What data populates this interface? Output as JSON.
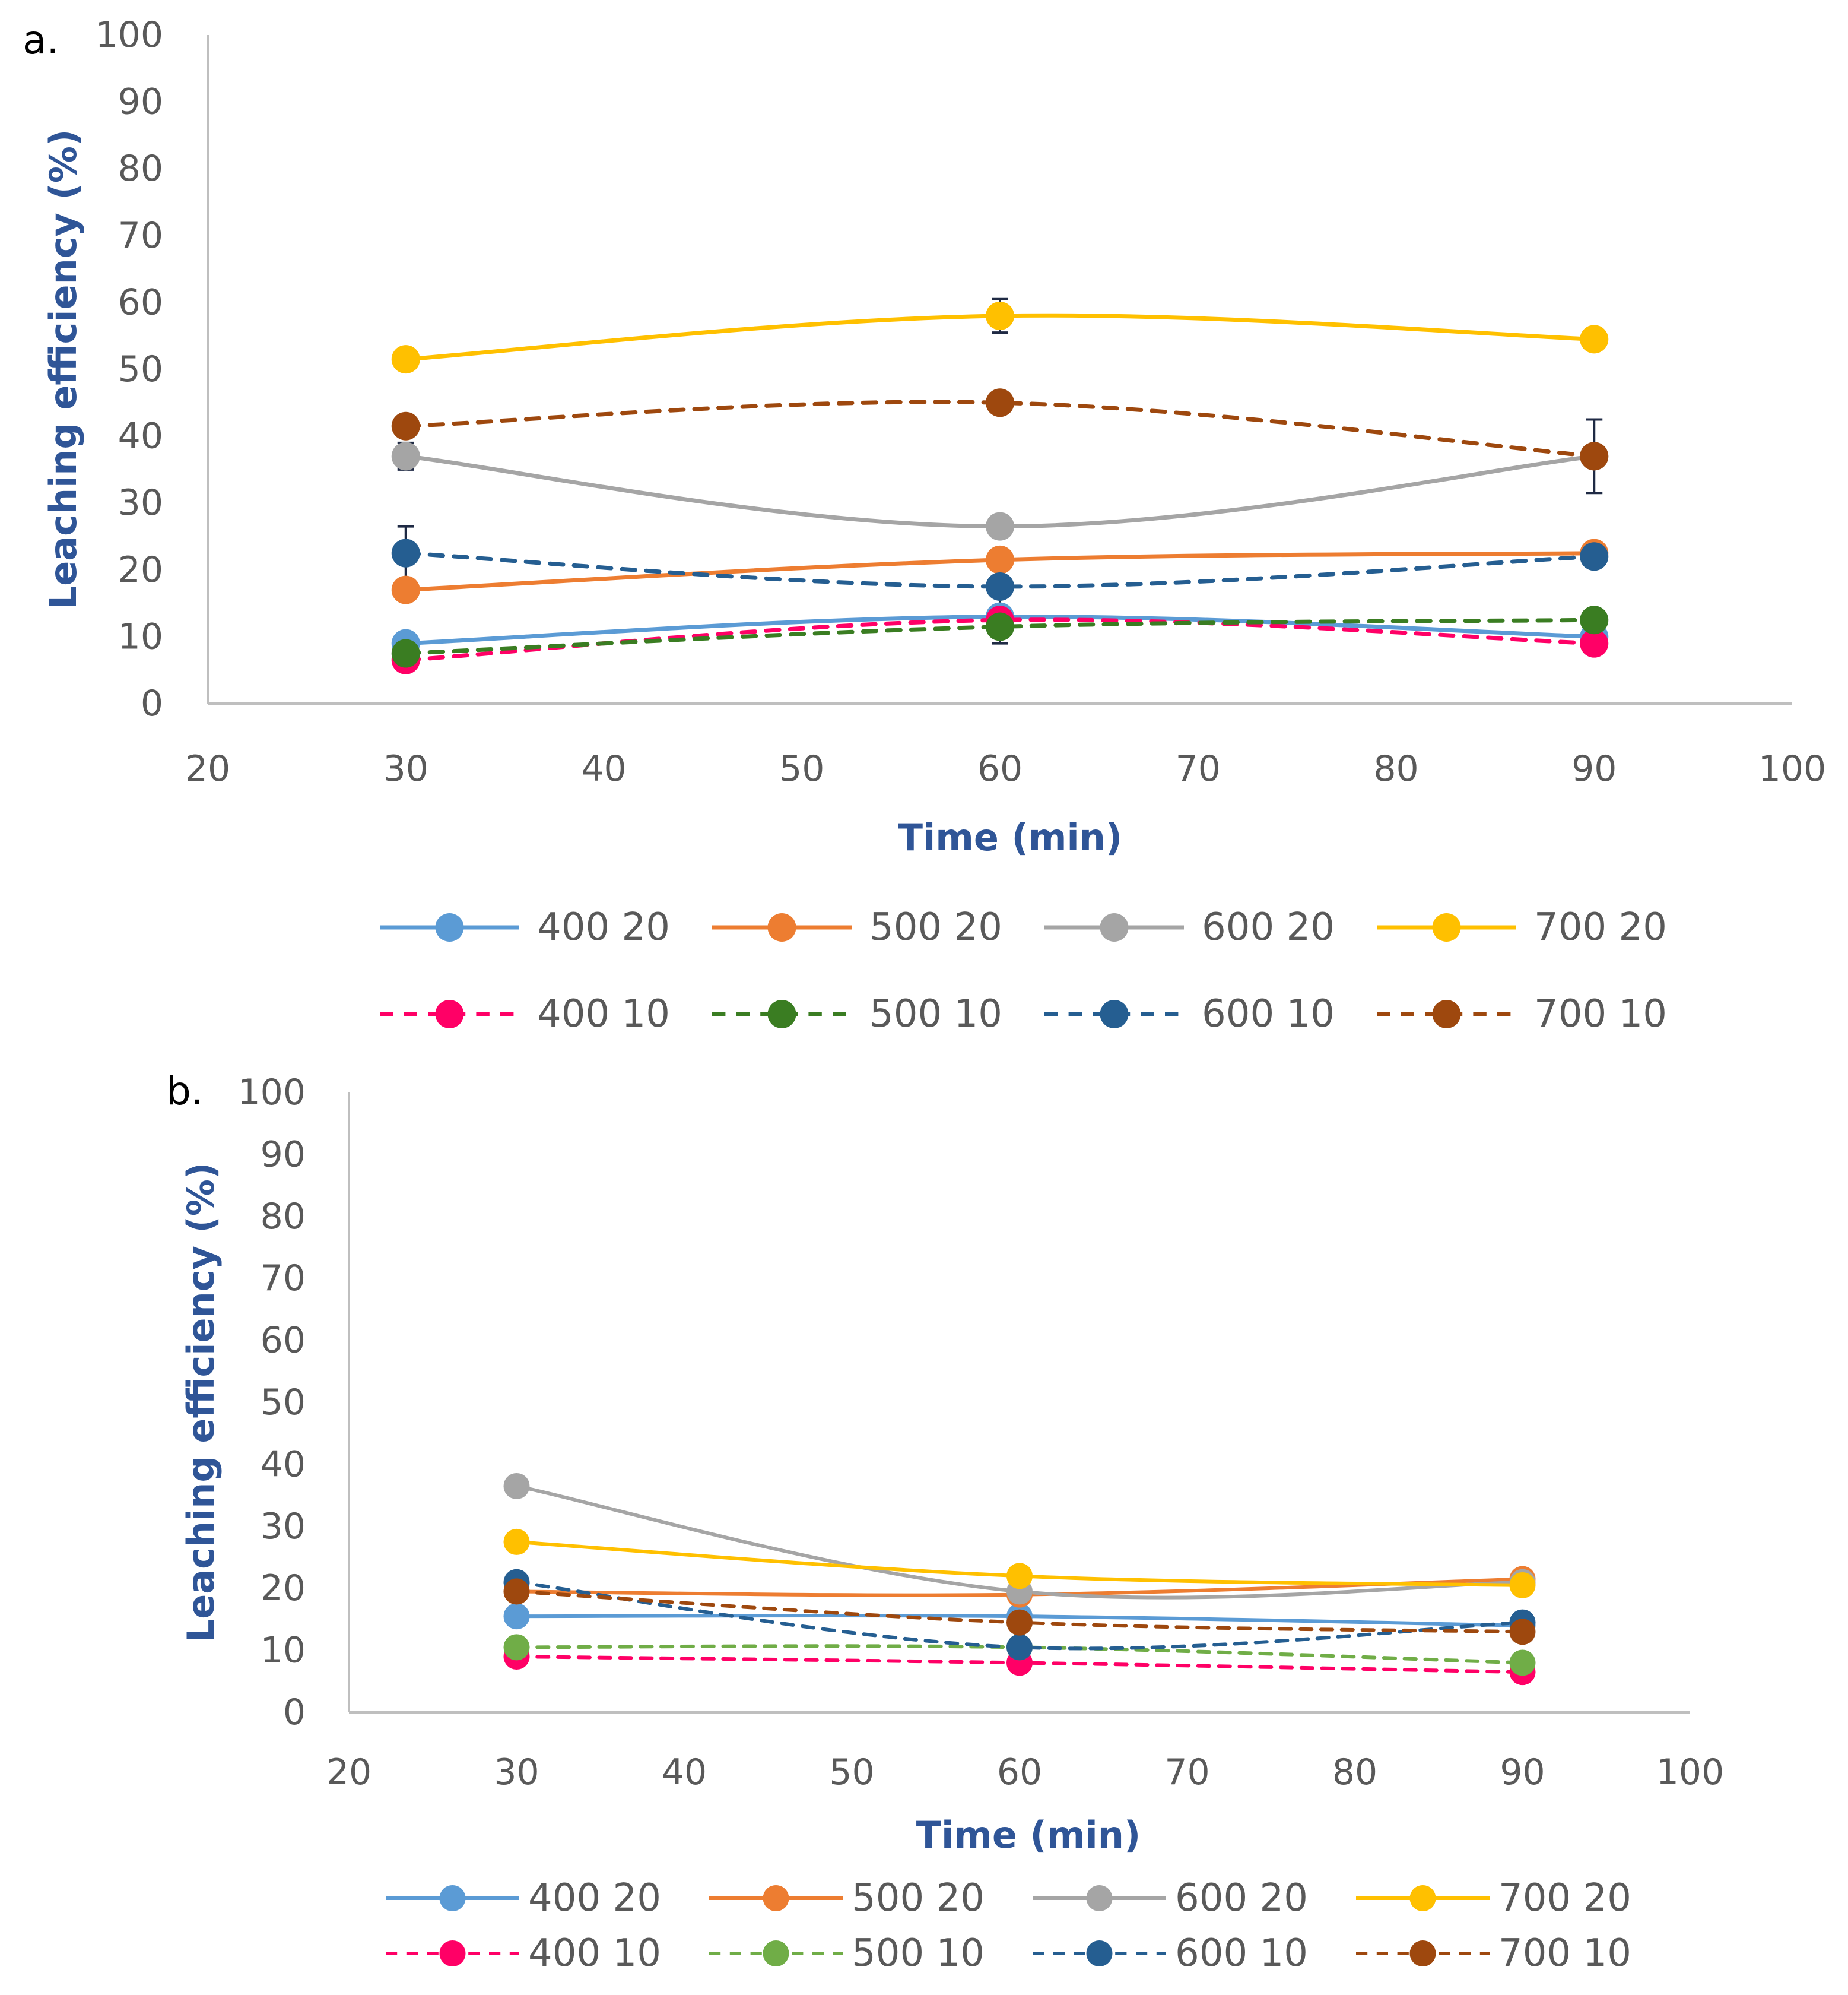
{
  "chart_data": [
    {
      "type": "line",
      "panel_label": "a.",
      "xlabel": "Time (min)",
      "ylabel": "Leaching efficiency (%)",
      "xlim": [
        20,
        100
      ],
      "ylim": [
        0,
        100
      ],
      "xticks": [
        "20",
        "30",
        "40",
        "50",
        "60",
        "70",
        "80",
        "90",
        "100"
      ],
      "yticks": [
        "0",
        "10",
        "20",
        "30",
        "40",
        "50",
        "60",
        "70",
        "80",
        "90",
        "100"
      ],
      "x": [
        30,
        60,
        90
      ],
      "legend_position": "bottom",
      "series": [
        {
          "name": "400 20",
          "values": [
            9,
            13,
            10
          ],
          "color": "#5B9BD5",
          "style": "solid"
        },
        {
          "name": "500 20",
          "values": [
            17,
            21.5,
            22.5
          ],
          "color": "#ED7D31",
          "style": "solid"
        },
        {
          "name": "600 20",
          "values": [
            37,
            26.5,
            37
          ],
          "color": "#A5A5A5",
          "style": "solid",
          "errors": [
            2,
            0,
            0
          ]
        },
        {
          "name": "700 20",
          "values": [
            51.5,
            58,
            54.5
          ],
          "color": "#FFC000",
          "style": "solid",
          "errors": [
            0,
            2.5,
            1.5
          ]
        },
        {
          "name": "400 10",
          "values": [
            6.5,
            12.5,
            9
          ],
          "color": "#FF0066",
          "style": "dashed"
        },
        {
          "name": "500 10",
          "values": [
            7.5,
            11.5,
            12.5
          ],
          "color": "#3A7D22",
          "style": "dashed",
          "errors": [
            0,
            2.5,
            0
          ]
        },
        {
          "name": "600 10",
          "values": [
            22.5,
            17.5,
            22
          ],
          "color": "#255E91",
          "style": "dashed",
          "errors": [
            4,
            3,
            0
          ]
        },
        {
          "name": "700 10",
          "values": [
            41.5,
            45,
            37
          ],
          "color": "#9E480E",
          "style": "dashed",
          "errors": [
            0,
            0,
            5.5
          ]
        }
      ]
    },
    {
      "type": "line",
      "panel_label": "b.",
      "xlabel": "Time (min)",
      "ylabel": "Leaching efficiency (%)",
      "xlim": [
        20,
        100
      ],
      "ylim": [
        0,
        100
      ],
      "xticks": [
        "20",
        "30",
        "40",
        "50",
        "60",
        "70",
        "80",
        "90",
        "100"
      ],
      "yticks": [
        "0",
        "10",
        "20",
        "30",
        "40",
        "50",
        "60",
        "70",
        "80",
        "90",
        "100"
      ],
      "x": [
        30,
        60,
        90
      ],
      "legend_position": "bottom",
      "series": [
        {
          "name": "400 20",
          "values": [
            15.5,
            15.5,
            14
          ],
          "color": "#5B9BD5",
          "style": "solid"
        },
        {
          "name": "500 20",
          "values": [
            19.5,
            19,
            21.5
          ],
          "color": "#ED7D31",
          "style": "solid"
        },
        {
          "name": "600 20",
          "values": [
            36.5,
            19.5,
            21
          ],
          "color": "#A5A5A5",
          "style": "solid"
        },
        {
          "name": "700 20",
          "values": [
            27.5,
            22,
            20.5
          ],
          "color": "#FFC000",
          "style": "solid"
        },
        {
          "name": "400 10",
          "values": [
            9,
            8,
            6.5
          ],
          "color": "#FF0066",
          "style": "dashed"
        },
        {
          "name": "500 10",
          "values": [
            10.5,
            10.5,
            8
          ],
          "color": "#70AD47",
          "style": "dashed"
        },
        {
          "name": "600 10",
          "values": [
            21,
            10.5,
            14.5
          ],
          "color": "#255E91",
          "style": "dashed"
        },
        {
          "name": "700 10",
          "values": [
            19.5,
            14.5,
            13
          ],
          "color": "#9E480E",
          "style": "dashed"
        }
      ]
    }
  ]
}
